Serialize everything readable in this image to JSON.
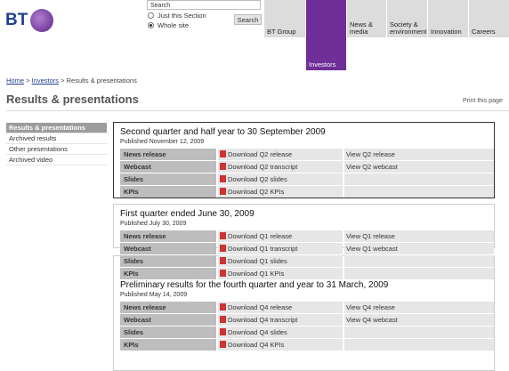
{
  "header": {
    "logo": "BT",
    "search": {
      "placeholder": "Search",
      "options": [
        "Just this Section",
        "Whole site"
      ],
      "button": "Search"
    },
    "nav": [
      "BT Group",
      "Investors",
      "News & media",
      "Society & environment",
      "Innovation",
      "Careers"
    ],
    "active": 1
  },
  "breadcrumb": {
    "items": [
      "Home",
      "Investors",
      "Results & presentations"
    ],
    "separator": ">"
  },
  "page_title": "Results & presentations",
  "print": "Print this page",
  "sidebar": [
    "Results & presentations",
    "Archived results",
    "Other presentations",
    "Archived video"
  ],
  "sections": [
    {
      "title": "Second quarter and half year to 30 September 2009",
      "published": "Published November 12, 2009",
      "rows": [
        {
          "label": "News release",
          "download": "Download Q2 release",
          "view": "View Q2 release"
        },
        {
          "label": "Webcast",
          "download": "Download Q2 transcript",
          "view": "View Q2 webcast"
        },
        {
          "label": "Slides",
          "download": "Download Q2 slides"
        },
        {
          "label": "KPIs",
          "download": "Download Q2 KPIs"
        }
      ]
    },
    {
      "title": "First quarter ended June 30, 2009",
      "published": "Published July 30, 2009",
      "rows": [
        {
          "label": "News release",
          "download": "Download Q1 release",
          "view": "View Q1 release"
        },
        {
          "label": "Webcast",
          "download": "Download Q1 transcript",
          "view": "View Q1 webcast"
        },
        {
          "label": "Slides",
          "download": "Download Q1 slides"
        },
        {
          "label": "KPIs",
          "download": "Download Q1 KPIs"
        }
      ]
    },
    {
      "title": "Preliminary results for the fourth quarter and year to 31 March, 2009",
      "published": "Published May 14, 2009",
      "rows": [
        {
          "label": "News release",
          "download": "Download Q4 release",
          "view": "View Q4 release"
        },
        {
          "label": "Webcast",
          "download": "Download Q4 transcript",
          "view": "View Q4 webcast"
        },
        {
          "label": "Slides",
          "download": "Download Q4 slides"
        },
        {
          "label": "KPIs",
          "download": "Download Q4 KPIs"
        }
      ]
    }
  ]
}
